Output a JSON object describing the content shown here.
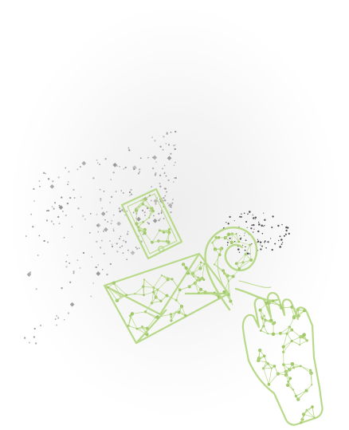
{
  "illustration": {
    "name": "digital-communication-illustration",
    "colors": {
      "background_glow": "#eeeeee",
      "line_art": "#b9d98a",
      "node": "#a3c86c",
      "particles_gray": "#8f8f8f",
      "particles_dark": "#555555"
    },
    "icons": [
      "smartphone-icon",
      "envelope-icon",
      "swirl-icon",
      "hand-icon"
    ]
  }
}
